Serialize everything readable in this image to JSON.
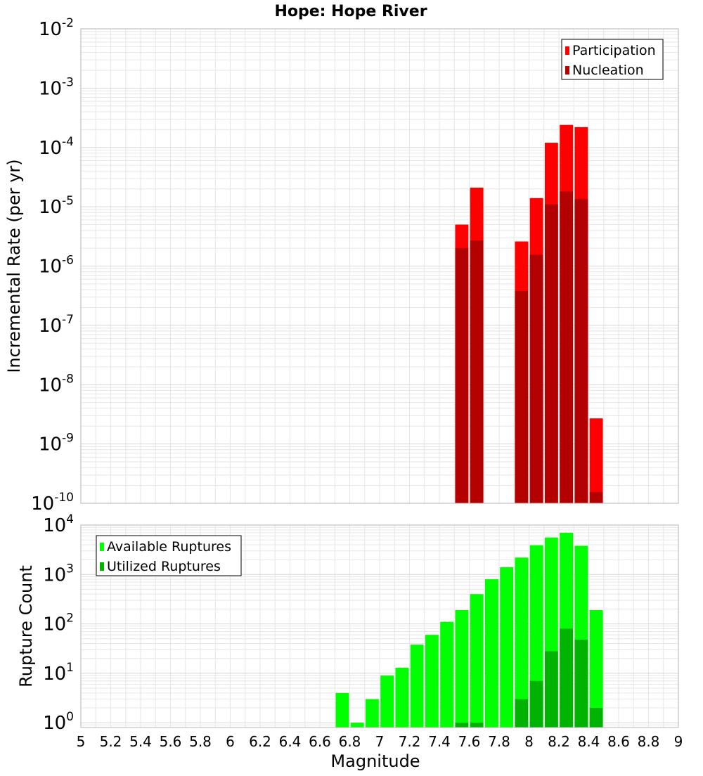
{
  "title": "Hope: Hope River",
  "colors": {
    "participation": "#ff0000",
    "nucleation": "#b30000",
    "available": "#00ff00",
    "utilized": "#00b300",
    "grid": "#e6e6e6",
    "frame": "#b4b4b4",
    "background": "#ffffff"
  },
  "chart_data": [
    {
      "type": "bar",
      "title": "Hope: Hope River",
      "xlabel": "",
      "ylabel": "Incremental Rate (per yr)",
      "yscale": "log",
      "xlim": [
        5,
        9
      ],
      "ylim": [
        1e-10,
        0.01
      ],
      "grid": true,
      "legend_position": "top-right",
      "legend": [
        "Participation",
        "Nucleation"
      ],
      "y_tick_labels": [
        {
          "base": "10",
          "exp": "-2",
          "value": 0.01
        },
        {
          "base": "10",
          "exp": "-3",
          "value": 0.001
        },
        {
          "base": "10",
          "exp": "-4",
          "value": 0.0001
        },
        {
          "base": "10",
          "exp": "-5",
          "value": 1e-05
        },
        {
          "base": "10",
          "exp": "-6",
          "value": 1e-06
        },
        {
          "base": "10",
          "exp": "-7",
          "value": 1e-07
        },
        {
          "base": "10",
          "exp": "-8",
          "value": 1e-08
        },
        {
          "base": "10",
          "exp": "-9",
          "value": 1e-09
        },
        {
          "base": "10",
          "exp": "-10",
          "value": 1e-10
        }
      ],
      "bin_width": 0.1,
      "x": [
        7.55,
        7.65,
        7.95,
        8.05,
        8.15,
        8.25,
        8.35,
        8.45
      ],
      "series": [
        {
          "name": "Participation",
          "values": [
            5e-06,
            2.1e-05,
            2.6e-06,
            1.4e-05,
            0.00012,
            0.00024,
            0.00022,
            2.7e-09
          ]
        },
        {
          "name": "Nucleation",
          "values": [
            2e-06,
            2.7e-06,
            3.8e-07,
            1.55e-06,
            1.1e-05,
            1.8e-05,
            1.35e-05,
            1.55e-10
          ]
        }
      ]
    },
    {
      "type": "bar",
      "title": "",
      "xlabel": "Magnitude",
      "ylabel": "Rupture Count",
      "yscale": "log",
      "xlim": [
        5,
        9
      ],
      "ylim": [
        0.8,
        10000
      ],
      "grid": true,
      "legend_position": "top-left",
      "legend": [
        "Available Ruptures",
        "Utilized Ruptures"
      ],
      "y_tick_labels": [
        {
          "base": "10",
          "exp": "4",
          "value": 10000
        },
        {
          "base": "10",
          "exp": "3",
          "value": 1000
        },
        {
          "base": "10",
          "exp": "2",
          "value": 100
        },
        {
          "base": "10",
          "exp": "1",
          "value": 10
        },
        {
          "base": "10",
          "exp": "0",
          "value": 1
        }
      ],
      "x_tick_labels": [
        "5",
        "5.2",
        "5.4",
        "5.6",
        "5.8",
        "6",
        "6.2",
        "6.4",
        "6.6",
        "6.8",
        "7",
        "7.2",
        "7.4",
        "7.6",
        "7.8",
        "8",
        "8.2",
        "8.4",
        "8.6",
        "8.8",
        "9"
      ],
      "bin_width": 0.1,
      "series": [
        {
          "name": "Available Ruptures",
          "x": [
            6.75,
            6.85,
            6.95,
            7.05,
            7.15,
            7.25,
            7.35,
            7.45,
            7.55,
            7.65,
            7.75,
            7.85,
            7.95,
            8.05,
            8.15,
            8.25,
            8.35,
            8.45
          ],
          "values": [
            4,
            1,
            3,
            9,
            13,
            38,
            60,
            110,
            190,
            400,
            800,
            1400,
            2200,
            3900,
            5600,
            7000,
            3800,
            190
          ]
        },
        {
          "name": "Utilized Ruptures",
          "x": [
            7.55,
            7.65,
            7.95,
            8.05,
            8.15,
            8.25,
            8.35,
            8.45
          ],
          "values": [
            1,
            1,
            3,
            7,
            28,
            80,
            48,
            2
          ]
        }
      ]
    }
  ]
}
